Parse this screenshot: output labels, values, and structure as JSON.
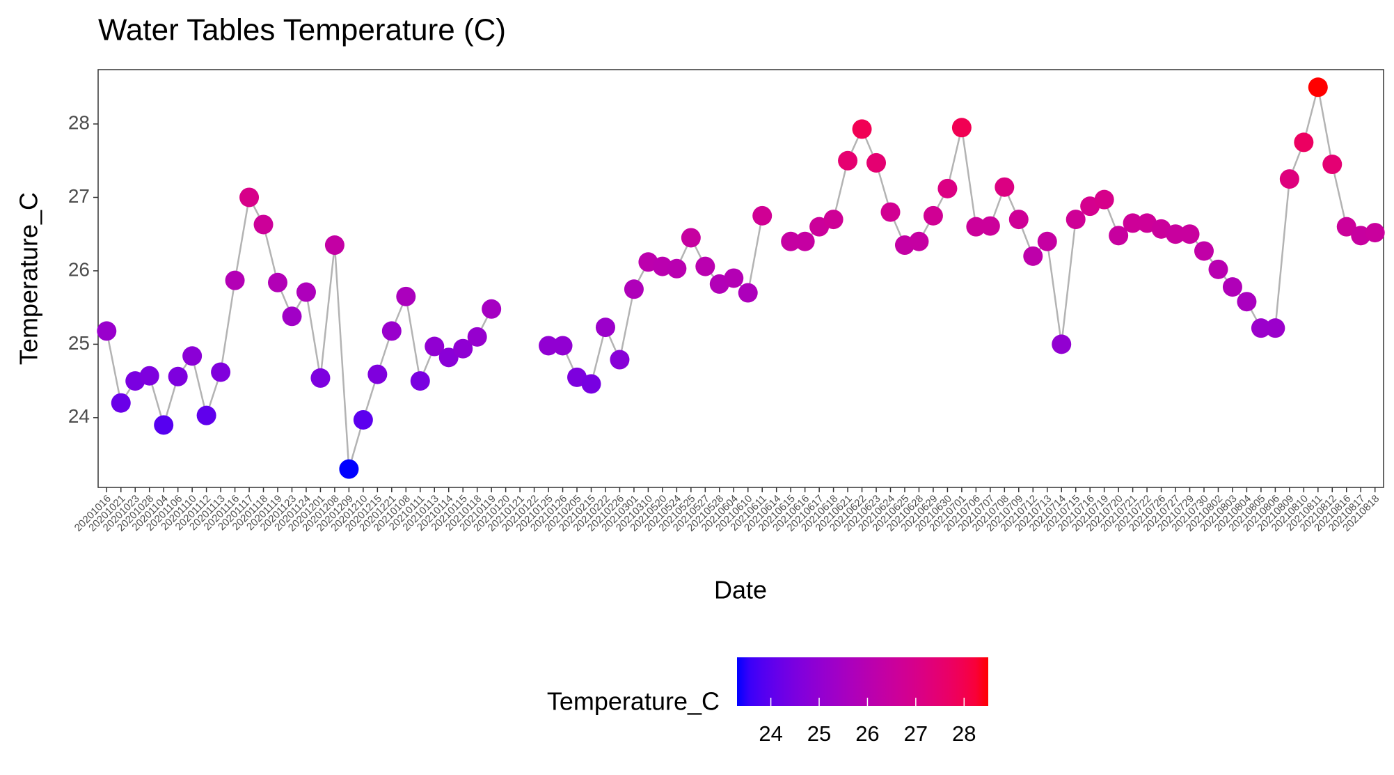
{
  "chart_data": {
    "type": "line",
    "title": "Water Tables Temperature (C)",
    "x_label": "Date",
    "y_label": "Temperature_C",
    "categories": [
      "20201016",
      "20201021",
      "20201023",
      "20201028",
      "20201104",
      "20201106",
      "20201110",
      "20201112",
      "20201113",
      "20201116",
      "20201117",
      "20201118",
      "20201119",
      "20201123",
      "20201124",
      "20201201",
      "20201208",
      "20201209",
      "20201210",
      "20201215",
      "20201221",
      "20210108",
      "20210111",
      "20210113",
      "20210114",
      "20210115",
      "20210118",
      "20210119",
      "20210120",
      "20210121",
      "20210122",
      "20210125",
      "20210126",
      "20210205",
      "20210215",
      "20210222",
      "20210226",
      "20210301",
      "20210310",
      "20210520",
      "20210524",
      "20210525",
      "20210527",
      "20210528",
      "20210604",
      "20210610",
      "20210611",
      "20210614",
      "20210615",
      "20210616",
      "20210617",
      "20210618",
      "20210621",
      "20210622",
      "20210623",
      "20210624",
      "20210625",
      "20210628",
      "20210629",
      "20210630",
      "20210701",
      "20210706",
      "20210707",
      "20210708",
      "20210709",
      "20210712",
      "20210713",
      "20210714",
      "20210715",
      "20210716",
      "20210719",
      "20210720",
      "20210721",
      "20210722",
      "20210726",
      "20210727",
      "20210729",
      "20210730",
      "20210802",
      "20210803",
      "20210804",
      "20210805",
      "20210806",
      "20210809",
      "20210810",
      "20210811",
      "20210812",
      "20210816",
      "20210817",
      "20210818"
    ],
    "series": [
      {
        "name": "Temperature_C",
        "color": "#b3b3b3",
        "values": [
          25.18,
          24.2,
          24.5,
          24.57,
          23.9,
          24.56,
          24.84,
          24.03,
          24.62,
          25.87,
          27.0,
          26.63,
          25.84,
          25.38,
          25.71,
          24.54,
          26.35,
          23.3,
          23.97,
          24.59,
          25.18,
          25.65,
          24.5,
          24.97,
          24.82,
          24.94,
          25.1,
          25.48,
          null,
          null,
          null,
          24.98,
          24.98,
          24.55,
          24.46,
          25.23,
          24.79,
          25.75,
          26.12,
          26.06,
          26.03,
          26.45,
          26.06,
          25.82,
          25.9,
          25.7,
          26.75,
          null,
          26.4,
          26.4,
          26.6,
          26.7,
          27.5,
          27.93,
          27.47,
          26.8,
          26.35,
          26.4,
          26.75,
          27.12,
          27.95,
          26.6,
          26.61,
          27.14,
          26.7,
          26.2,
          26.4,
          25.0,
          26.7,
          26.88,
          26.97,
          26.48,
          26.65,
          26.65,
          26.57,
          26.5,
          26.5,
          26.27,
          26.02,
          25.78,
          25.58,
          25.22,
          25.22,
          27.25,
          27.75,
          28.5,
          27.45,
          26.6,
          26.48,
          26.52
        ]
      }
    ],
    "ylim": [
      23.05,
      28.74
    ],
    "yticks": [
      24,
      25,
      26,
      27,
      28
    ],
    "color_scale": {
      "title": "Temperature_C",
      "low": "#0000ff",
      "high": "#ff0000",
      "lim": [
        23.3,
        28.5
      ],
      "ticks": [
        24,
        25,
        26,
        27,
        28
      ]
    }
  }
}
